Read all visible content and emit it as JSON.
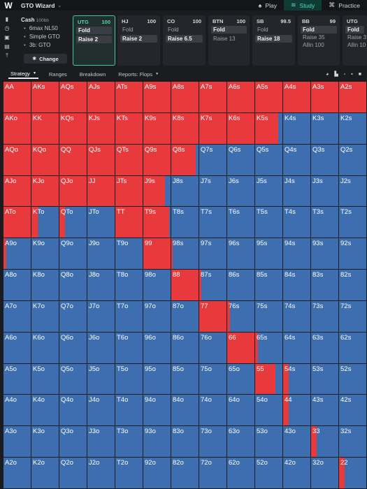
{
  "header": {
    "brand": "GTO Wizard",
    "logo": "W",
    "nav": [
      {
        "label": "Play",
        "icon": "spade-icon",
        "active": false
      },
      {
        "label": "Study",
        "icon": "layers-icon",
        "active": true
      },
      {
        "label": "Practice",
        "icon": "gamepad-icon",
        "active": false
      }
    ]
  },
  "settings": {
    "title": "Cash",
    "stack": "100bb",
    "lines": [
      "6max NL50",
      "Simple GTO",
      "3b: GTO"
    ],
    "change_label": "Change"
  },
  "positions": [
    {
      "name": "UTG",
      "stack": "100",
      "actions": [
        {
          "label": "Fold",
          "selected": true
        },
        {
          "label": "Raise 2",
          "selected": true
        }
      ],
      "active": true
    },
    {
      "name": "HJ",
      "stack": "100",
      "actions": [
        {
          "label": "Fold",
          "selected": false
        },
        {
          "label": "Raise 2",
          "selected": true
        }
      ],
      "active": false
    },
    {
      "name": "CO",
      "stack": "100",
      "actions": [
        {
          "label": "Fold",
          "selected": false
        },
        {
          "label": "Raise 6.5",
          "selected": true
        }
      ],
      "active": false
    },
    {
      "name": "BTN",
      "stack": "100",
      "actions": [
        {
          "label": "Fold",
          "selected": true
        },
        {
          "label": "Raise 13",
          "selected": false
        }
      ],
      "active": false
    },
    {
      "name": "SB",
      "stack": "99.5",
      "actions": [
        {
          "label": "Fold",
          "selected": false
        },
        {
          "label": "Raise 18",
          "selected": true
        }
      ],
      "active": false
    },
    {
      "name": "BB",
      "stack": "99",
      "actions": [
        {
          "label": "Fold",
          "selected": true
        },
        {
          "label": "Raise 35",
          "selected": false
        },
        {
          "label": "Allin 100",
          "selected": false
        }
      ],
      "active": false
    },
    {
      "name": "UTG",
      "stack": "",
      "actions": [
        {
          "label": "Fold",
          "selected": true
        },
        {
          "label": "Raise 3",
          "selected": false
        },
        {
          "label": "Allin 10",
          "selected": false
        }
      ],
      "active": false
    }
  ],
  "tabs": [
    {
      "label": "Strategy",
      "active": true,
      "dropdown": true
    },
    {
      "label": "Ranges",
      "active": false,
      "dropdown": false
    },
    {
      "label": "Breakdown",
      "active": false,
      "dropdown": false
    },
    {
      "label": "Reports: Flops",
      "active": false,
      "dropdown": true
    }
  ],
  "colors": {
    "raise": "#e83a3c",
    "fold": "#3d6fb0"
  },
  "grid": {
    "rows": [
      {
        "labels": [
          "AA",
          "AKs",
          "AQs",
          "AJs",
          "ATs",
          "A9s",
          "A8s",
          "A7s",
          "A6s",
          "A5s",
          "A4s",
          "A3s",
          "A2s"
        ],
        "raise": [
          1,
          1,
          1,
          1,
          1,
          1,
          1,
          1,
          1,
          1,
          1,
          1,
          1
        ]
      },
      {
        "labels": [
          "AKo",
          "KK",
          "KQs",
          "KJs",
          "KTs",
          "K9s",
          "K8s",
          "K7s",
          "K6s",
          "K5s",
          "K4s",
          "K3s",
          "K2s"
        ],
        "raise": [
          1,
          1,
          1,
          1,
          1,
          1,
          1,
          1,
          1,
          0.85,
          0,
          0,
          0
        ]
      },
      {
        "labels": [
          "AQo",
          "KQo",
          "QQ",
          "QJs",
          "QTs",
          "Q9s",
          "Q8s",
          "Q7s",
          "Q6s",
          "Q5s",
          "Q4s",
          "Q3s",
          "Q2s"
        ],
        "raise": [
          1,
          1,
          1,
          1,
          1,
          1,
          0.9,
          0,
          0,
          0,
          0,
          0,
          0
        ]
      },
      {
        "labels": [
          "AJo",
          "KJo",
          "QJo",
          "JJ",
          "JTs",
          "J9s",
          "J8s",
          "J7s",
          "J6s",
          "J5s",
          "J4s",
          "J3s",
          "J2s"
        ],
        "raise": [
          1,
          1,
          1,
          1,
          1,
          0.8,
          0,
          0,
          0,
          0,
          0,
          0,
          0
        ]
      },
      {
        "labels": [
          "ATo",
          "KTo",
          "QTo",
          "JTo",
          "TT",
          "T9s",
          "T8s",
          "T7s",
          "T6s",
          "T5s",
          "T4s",
          "T3s",
          "T2s"
        ],
        "raise": [
          1,
          0.25,
          0.2,
          0,
          1,
          0.95,
          0,
          0,
          0,
          0,
          0,
          0,
          0
        ]
      },
      {
        "labels": [
          "A9o",
          "K9o",
          "Q9o",
          "J9o",
          "T9o",
          "99",
          "98s",
          "97s",
          "96s",
          "95s",
          "94s",
          "93s",
          "92s"
        ],
        "raise": [
          0.1,
          0,
          0,
          0,
          0,
          1,
          0.05,
          0,
          0,
          0,
          0,
          0,
          0
        ]
      },
      {
        "labels": [
          "A8o",
          "K8o",
          "Q8o",
          "J8o",
          "T8o",
          "98o",
          "88",
          "87s",
          "86s",
          "85s",
          "84s",
          "83s",
          "82s"
        ],
        "raise": [
          0,
          0,
          0,
          0,
          0,
          0,
          1,
          0.08,
          0,
          0,
          0,
          0,
          0
        ]
      },
      {
        "labels": [
          "A7o",
          "K7o",
          "Q7o",
          "J7o",
          "T7o",
          "97o",
          "87o",
          "77",
          "76s",
          "75s",
          "74s",
          "73s",
          "72s"
        ],
        "raise": [
          0,
          0,
          0,
          0,
          0,
          0,
          0,
          1,
          0.1,
          0,
          0,
          0,
          0
        ]
      },
      {
        "labels": [
          "A6o",
          "K6o",
          "Q6o",
          "J6o",
          "T6o",
          "96o",
          "86o",
          "76o",
          "66",
          "65s",
          "64s",
          "63s",
          "62s"
        ],
        "raise": [
          0,
          0,
          0,
          0,
          0,
          0,
          0,
          0,
          1,
          0.1,
          0,
          0,
          0
        ]
      },
      {
        "labels": [
          "A5o",
          "K5o",
          "Q5o",
          "J5o",
          "T5o",
          "95o",
          "85o",
          "75o",
          "65o",
          "55",
          "54s",
          "53s",
          "52s"
        ],
        "raise": [
          0,
          0,
          0,
          0,
          0,
          0,
          0,
          0,
          0,
          0.75,
          0.2,
          0,
          0
        ]
      },
      {
        "labels": [
          "A4o",
          "K4o",
          "Q4o",
          "J4o",
          "T4o",
          "94o",
          "84o",
          "74o",
          "64o",
          "54o",
          "44",
          "43s",
          "42s"
        ],
        "raise": [
          0,
          0,
          0,
          0,
          0,
          0,
          0,
          0,
          0,
          0,
          0.2,
          0,
          0
        ]
      },
      {
        "labels": [
          "A3o",
          "K3o",
          "Q3o",
          "J3o",
          "T3o",
          "93o",
          "83o",
          "73o",
          "63o",
          "53o",
          "43o",
          "33",
          "32s"
        ],
        "raise": [
          0,
          0,
          0,
          0,
          0,
          0,
          0,
          0,
          0,
          0,
          0,
          0.2,
          0
        ]
      },
      {
        "labels": [
          "A2o",
          "K2o",
          "Q2o",
          "J2o",
          "T2o",
          "92o",
          "82o",
          "72o",
          "62o",
          "52o",
          "42o",
          "32o",
          "22"
        ],
        "raise": [
          0,
          0,
          0,
          0,
          0,
          0,
          0,
          0,
          0,
          0,
          0,
          0,
          0.2
        ]
      }
    ]
  }
}
